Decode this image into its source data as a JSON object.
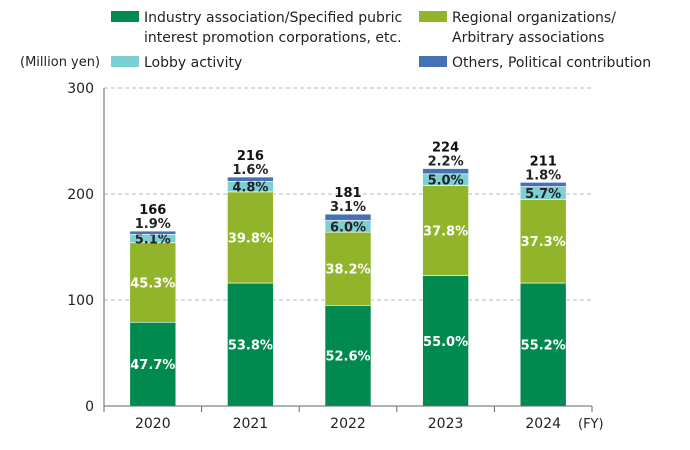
{
  "chart_data": {
    "type": "bar",
    "stacked": true,
    "y_unit_label": "(Million yen)",
    "x_unit_label": "(FY)",
    "ylim": [
      0,
      300
    ],
    "yticks": [
      0,
      100,
      200,
      300
    ],
    "gridlines": true,
    "categories": [
      "2020",
      "2021",
      "2022",
      "2023",
      "2024"
    ],
    "totals": [
      166,
      216,
      181,
      224,
      211
    ],
    "series": [
      {
        "name": "Industry association/Specified pubric interest promotion corporations, etc.",
        "name_lines": [
          "Industry association/Specified pubric",
          "interest promotion corporations, etc."
        ],
        "color": "#008a50",
        "values": [
          79,
          116,
          95,
          123,
          116
        ],
        "labels": [
          "47.7%",
          "53.8%",
          "52.6%",
          "55.0%",
          "55.2%"
        ]
      },
      {
        "name": "Regional organizations/Arbitrary associations",
        "name_lines": [
          "Regional organizations/",
          "Arbitrary associations"
        ],
        "color": "#92b42a",
        "values": [
          75,
          86,
          69,
          85,
          79
        ],
        "labels": [
          "45.3%",
          "39.8%",
          "38.2%",
          "37.8%",
          "37.3%"
        ]
      },
      {
        "name": "Lobby activity",
        "name_lines": [
          "Lobby activity"
        ],
        "color": "#7ccfd2",
        "values": [
          8,
          10,
          11,
          11,
          12
        ],
        "labels": [
          "5.1%",
          "4.8%",
          "6.0%",
          "5.0%",
          "5.7%"
        ]
      },
      {
        "name": "Others, Political contribution",
        "name_lines": [
          "Others, Political contribution"
        ],
        "color": "#4472b4",
        "values": [
          3,
          4,
          6,
          5,
          4
        ],
        "labels": [
          "1.9%",
          "1.6%",
          "3.1%",
          "2.2%",
          "1.8%"
        ]
      }
    ]
  }
}
